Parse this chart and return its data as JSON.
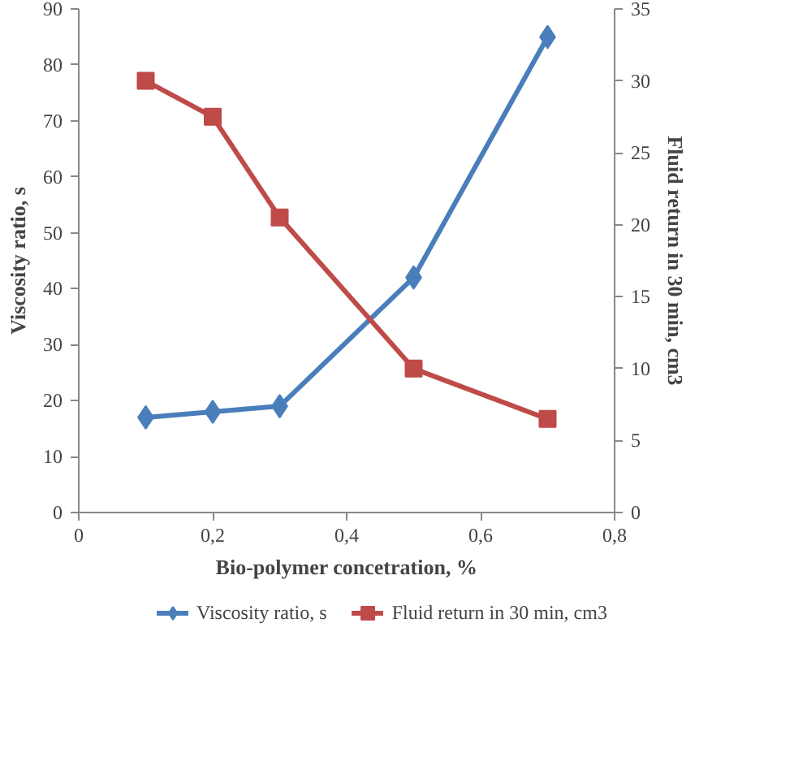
{
  "chart_data": {
    "type": "line",
    "xlabel": "Bio-polymer concetration, %",
    "ylabel": "Viscosity ratio, s",
    "y2label": "Fluid return in 30 min, cm3",
    "x": [
      0.1,
      0.2,
      0.3,
      0.5,
      0.7
    ],
    "series": [
      {
        "name": "Viscosity ratio, s",
        "color": "#4a7ebb",
        "values": [
          17,
          18,
          19,
          42,
          85
        ],
        "marker": "diamond"
      },
      {
        "name": "Fluid return in 30 min, cm3",
        "color": "#be4b48",
        "values": [
          30,
          27.5,
          20.5,
          10,
          6.5
        ],
        "axis": "y2",
        "marker": "square"
      }
    ],
    "xlim": [
      0,
      0.8
    ],
    "xticks": [
      0,
      {
        "value": 0.2,
        "label": "0,2"
      },
      {
        "value": 0.4,
        "label": "0,4"
      },
      {
        "value": 0.6,
        "label": "0,6"
      },
      {
        "value": 0.8,
        "label": "0,8"
      }
    ],
    "ylim": [
      0,
      90
    ],
    "yticks": [
      0,
      10,
      20,
      30,
      40,
      50,
      60,
      70,
      80,
      90
    ],
    "y2lim": [
      0,
      35
    ],
    "y2ticks": [
      0,
      5,
      10,
      15,
      20,
      25,
      30,
      35
    ],
    "grid": false,
    "legend": "bottom"
  }
}
